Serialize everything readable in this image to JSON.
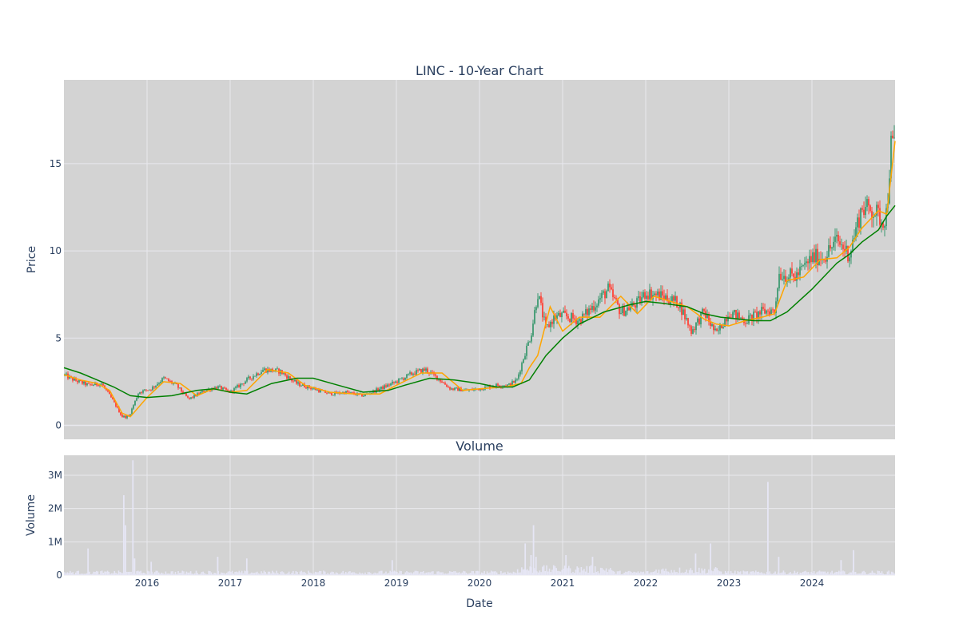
{
  "chart_data": [
    {
      "type": "candlestick",
      "title": "LINC - 10-Year Chart",
      "ylabel": "Price",
      "xlabel": "",
      "ylim": [
        -0.8,
        19.8
      ],
      "y_ticks": [
        0,
        5,
        10,
        15
      ],
      "x_range": [
        2015.0,
        2025.0
      ],
      "grid": true,
      "legend": "none",
      "colors": {
        "background": "#d3d3d3",
        "grid": "#e8e8ee",
        "increasing": "#3d9970",
        "decreasing": "#ff4136",
        "ma_short": "#ffa500",
        "ma_long": "#008000"
      },
      "series": [
        {
          "kind": "price-path",
          "x": [
            2015.0,
            2015.12,
            2015.3,
            2015.45,
            2015.58,
            2015.7,
            2015.78,
            2015.9,
            2016.05,
            2016.2,
            2016.35,
            2016.5,
            2016.7,
            2016.85,
            2017.0,
            2017.2,
            2017.4,
            2017.6,
            2017.8,
            2018.0,
            2018.2,
            2018.4,
            2018.6,
            2018.8,
            2019.0,
            2019.2,
            2019.35,
            2019.5,
            2019.65,
            2019.85,
            2020.0,
            2020.2,
            2020.35,
            2020.45,
            2020.55,
            2020.62,
            2020.7,
            2020.8,
            2020.9,
            2021.0,
            2021.2,
            2021.4,
            2021.55,
            2021.7,
            2021.9,
            2022.0,
            2022.2,
            2022.4,
            2022.55,
            2022.7,
            2022.85,
            2023.0,
            2023.2,
            2023.4,
            2023.5,
            2023.55,
            2023.6,
            2023.8,
            2024.0,
            2024.15,
            2024.3,
            2024.45,
            2024.6,
            2024.75,
            2024.85,
            2024.9,
            2024.95,
            2025.0
          ],
          "values": [
            2.9,
            2.6,
            2.3,
            2.4,
            1.5,
            0.5,
            0.5,
            1.9,
            2.1,
            2.7,
            2.3,
            1.5,
            2.0,
            2.2,
            1.9,
            2.6,
            3.2,
            3.1,
            2.4,
            2.1,
            1.8,
            1.9,
            1.7,
            2.1,
            2.5,
            3.0,
            3.2,
            2.7,
            2.1,
            2.0,
            2.1,
            2.3,
            2.3,
            2.6,
            4.2,
            5.2,
            7.6,
            5.5,
            6.2,
            6.3,
            6.0,
            7.0,
            7.8,
            6.5,
            7.0,
            7.6,
            7.4,
            7.0,
            5.4,
            6.5,
            5.2,
            6.5,
            6.0,
            6.5,
            6.6,
            6.5,
            8.7,
            8.5,
            9.6,
            9.7,
            10.6,
            9.8,
            12.5,
            12.3,
            11.7,
            12.2,
            16.0,
            16.1
          ]
        },
        {
          "name": "",
          "kind": "ma-short",
          "x": [
            2015.0,
            2015.2,
            2015.4,
            2015.55,
            2015.7,
            2015.8,
            2016.0,
            2016.2,
            2016.4,
            2016.6,
            2016.8,
            2017.0,
            2017.2,
            2017.45,
            2017.7,
            2017.9,
            2018.2,
            2018.5,
            2018.8,
            2019.0,
            2019.3,
            2019.55,
            2019.8,
            2020.0,
            2020.3,
            2020.5,
            2020.6,
            2020.7,
            2020.85,
            2021.0,
            2021.2,
            2021.45,
            2021.7,
            2021.9,
            2022.1,
            2022.3,
            2022.5,
            2022.7,
            2022.85,
            2023.0,
            2023.2,
            2023.4,
            2023.55,
            2023.7,
            2023.9,
            2024.1,
            2024.3,
            2024.45,
            2024.6,
            2024.8,
            2024.9,
            2025.0
          ],
          "values": [
            2.9,
            2.6,
            2.4,
            2.0,
            0.7,
            0.5,
            1.6,
            2.5,
            2.4,
            1.7,
            2.1,
            1.9,
            2.0,
            3.2,
            3.0,
            2.3,
            1.9,
            1.8,
            1.8,
            2.3,
            3.0,
            3.0,
            2.0,
            2.1,
            2.2,
            2.4,
            3.3,
            4.0,
            6.8,
            5.4,
            6.2,
            6.2,
            7.4,
            6.4,
            7.4,
            7.1,
            6.8,
            6.1,
            5.8,
            5.7,
            6.0,
            6.2,
            6.4,
            8.3,
            8.5,
            9.5,
            9.6,
            10.2,
            11.3,
            12.3,
            12.1,
            16.3
          ]
        },
        {
          "name": "",
          "kind": "ma-long",
          "x": [
            2015.0,
            2015.2,
            2015.4,
            2015.6,
            2015.8,
            2016.0,
            2016.3,
            2016.6,
            2016.8,
            2017.0,
            2017.2,
            2017.5,
            2017.8,
            2018.0,
            2018.3,
            2018.6,
            2018.9,
            2019.1,
            2019.4,
            2019.7,
            2020.0,
            2020.2,
            2020.4,
            2020.6,
            2020.8,
            2021.0,
            2021.2,
            2021.5,
            2021.8,
            2022.0,
            2022.2,
            2022.5,
            2022.7,
            2022.9,
            2023.1,
            2023.3,
            2023.5,
            2023.7,
            2024.0,
            2024.3,
            2024.45,
            2024.6,
            2024.8,
            2024.9,
            2025.0
          ],
          "values": [
            3.3,
            3.0,
            2.6,
            2.2,
            1.7,
            1.6,
            1.7,
            2.0,
            2.1,
            1.9,
            1.8,
            2.4,
            2.7,
            2.7,
            2.3,
            1.9,
            2.0,
            2.3,
            2.7,
            2.6,
            2.4,
            2.2,
            2.2,
            2.6,
            4.0,
            5.0,
            5.8,
            6.5,
            6.9,
            7.1,
            7.0,
            6.8,
            6.4,
            6.2,
            6.1,
            6.0,
            6.0,
            6.5,
            7.8,
            9.3,
            9.8,
            10.5,
            11.2,
            12.0,
            12.6
          ]
        }
      ]
    },
    {
      "type": "bar",
      "title": "Volume",
      "ylabel": "Volume",
      "xlabel": "Date",
      "ylim": [
        0,
        3600000
      ],
      "y_ticks": [
        0,
        1000000,
        2000000,
        3000000
      ],
      "y_tick_labels": [
        "0",
        "1M",
        "2M",
        "3M"
      ],
      "x_ticks": [
        2016,
        2017,
        2018,
        2019,
        2020,
        2021,
        2022,
        2023,
        2024
      ],
      "x_tick_labels": [
        "2016",
        "2017",
        "2018",
        "2019",
        "2020",
        "2021",
        "2022",
        "2023",
        "2024"
      ],
      "grid": true,
      "bar_color": "#e6e6f5",
      "baseline_volume": 80000,
      "spikes": [
        {
          "x": 2015.29,
          "value": 800000
        },
        {
          "x": 2015.72,
          "value": 2400000
        },
        {
          "x": 2015.74,
          "value": 1500000
        },
        {
          "x": 2015.83,
          "value": 3450000
        },
        {
          "x": 2015.85,
          "value": 500000
        },
        {
          "x": 2016.05,
          "value": 400000
        },
        {
          "x": 2016.85,
          "value": 550000
        },
        {
          "x": 2017.2,
          "value": 500000
        },
        {
          "x": 2018.95,
          "value": 450000
        },
        {
          "x": 2020.55,
          "value": 950000
        },
        {
          "x": 2020.62,
          "value": 600000
        },
        {
          "x": 2020.65,
          "value": 1500000
        },
        {
          "x": 2020.68,
          "value": 550000
        },
        {
          "x": 2021.04,
          "value": 600000
        },
        {
          "x": 2021.36,
          "value": 550000
        },
        {
          "x": 2022.6,
          "value": 650000
        },
        {
          "x": 2022.78,
          "value": 950000
        },
        {
          "x": 2023.47,
          "value": 2800000
        },
        {
          "x": 2023.6,
          "value": 550000
        },
        {
          "x": 2024.35,
          "value": 450000
        },
        {
          "x": 2024.5,
          "value": 750000
        }
      ]
    }
  ]
}
